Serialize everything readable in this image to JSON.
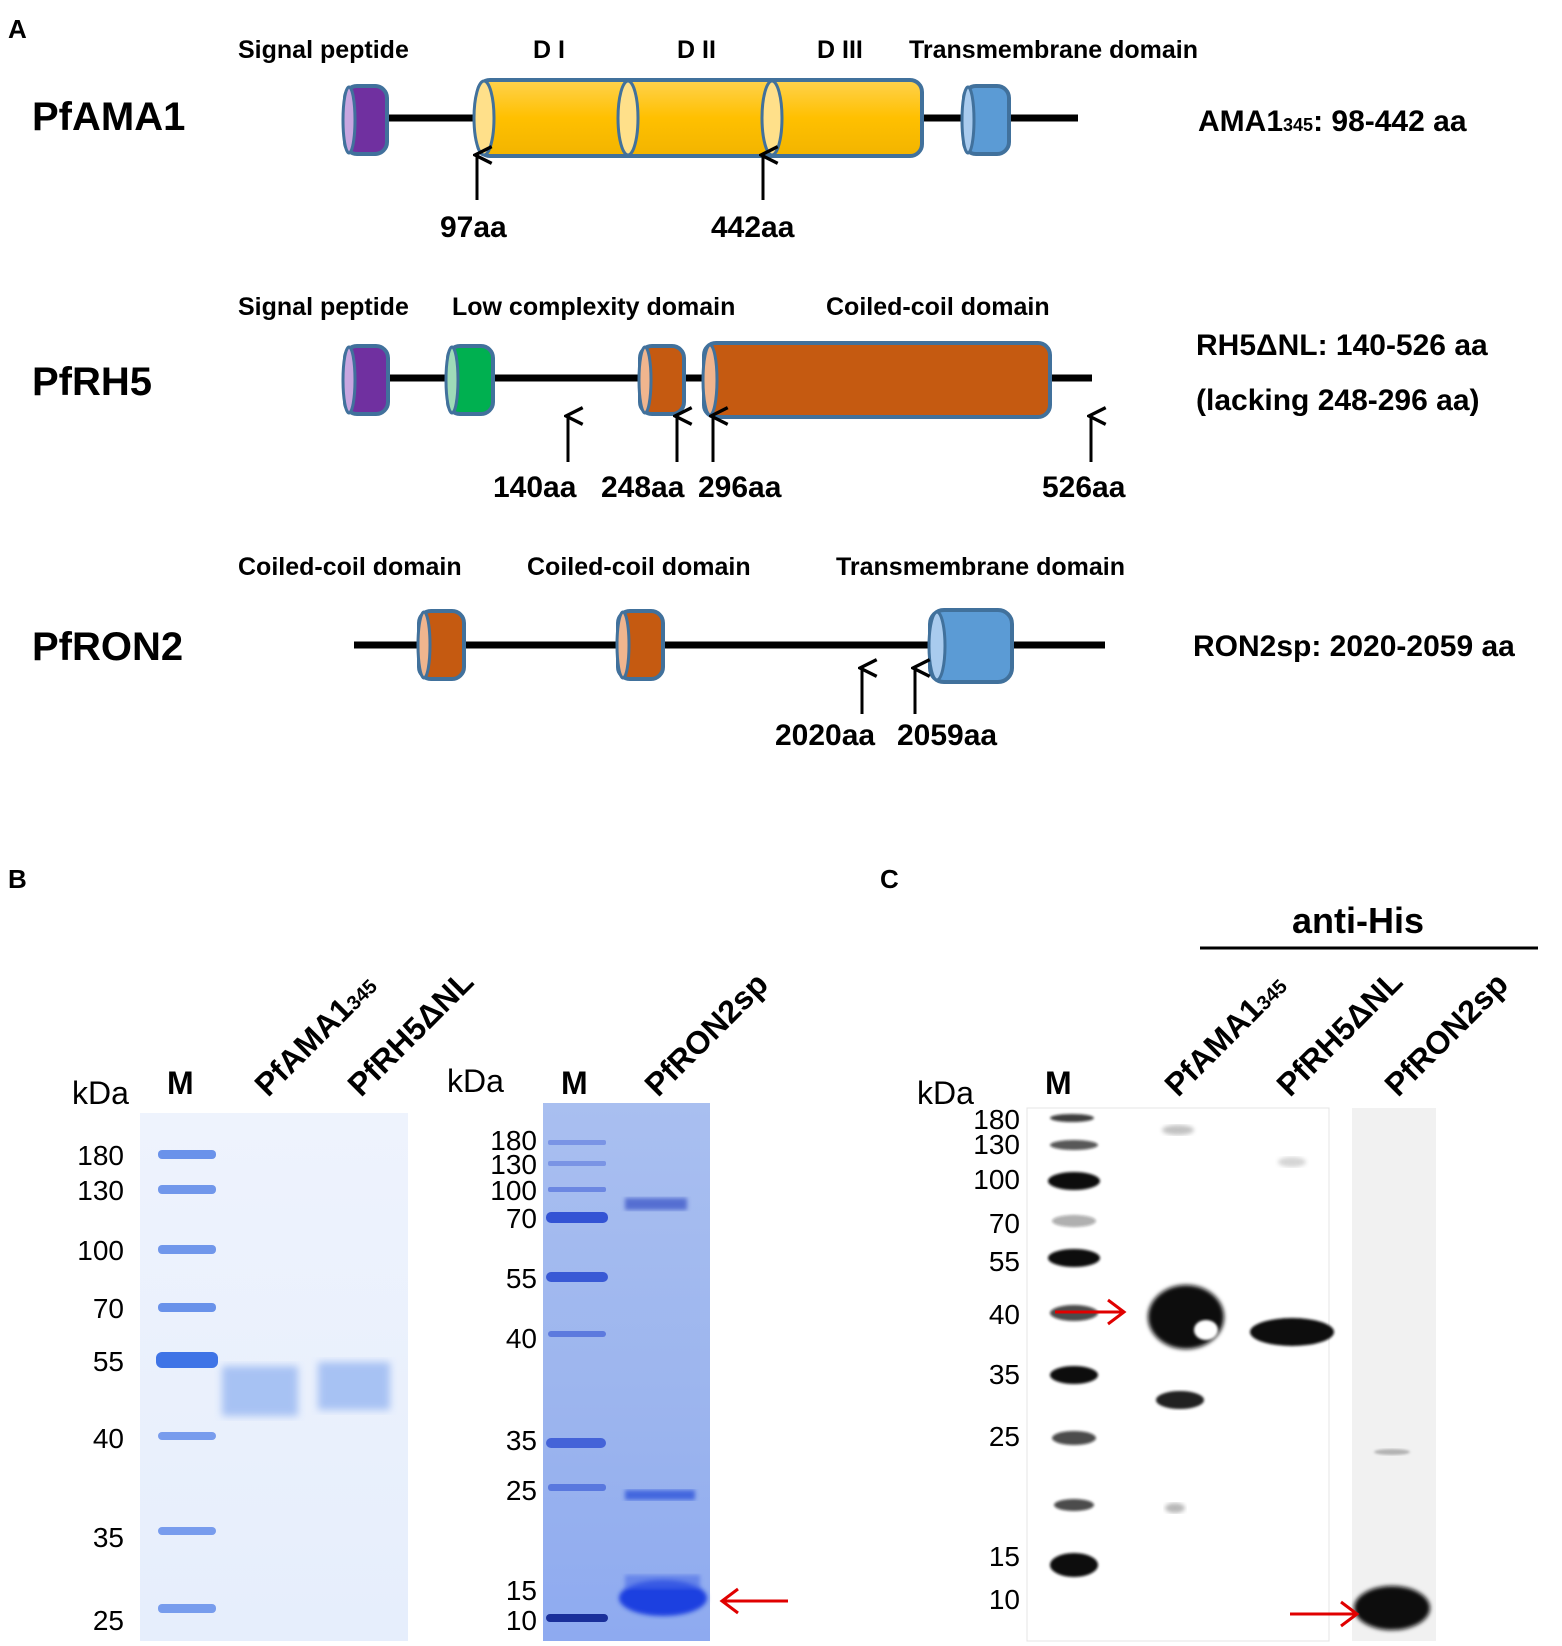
{
  "panels": {
    "a": {
      "label": "A",
      "ama1": {
        "name": "PfAMA1",
        "headers": [
          "Signal peptide",
          "D I",
          "D II",
          "D III",
          "Transmembrane domain"
        ],
        "positions": [
          "97aa",
          "442aa"
        ],
        "construct": {
          "main": "AMA1",
          "sub": "345",
          "rest": ": 98-442 aa"
        }
      },
      "rh5": {
        "name": "PfRH5",
        "headers": [
          "Signal peptide",
          "Low complexity domain",
          "Coiled-coil domain"
        ],
        "positions": [
          "140aa",
          "248aa",
          "296aa",
          "526aa"
        ],
        "construct": [
          "RH5ΔNL: 140-526 aa",
          "(lacking 248-296 aa)"
        ]
      },
      "ron2": {
        "name": "PfRON2",
        "headers": [
          "Coiled-coil domain",
          "Coiled-coil domain",
          "Transmembrane domain"
        ],
        "positions": [
          "2020aa",
          "2059aa"
        ],
        "construct": "RON2sp: 2020-2059 aa"
      }
    },
    "b": {
      "label": "B",
      "gel1": {
        "unit": "kDa",
        "marker": "M",
        "lanes": [
          {
            "main": "PfAMA1",
            "sub": "345"
          },
          {
            "main": "PfRH5ΔNL",
            "sub": ""
          }
        ],
        "ladder": [
          "180",
          "130",
          "100",
          "70",
          "55",
          "40",
          "35",
          "25"
        ]
      },
      "gel2": {
        "unit": "kDa",
        "marker": "M",
        "lanes": [
          "PfRON2sp"
        ],
        "ladder": [
          "180",
          "130",
          "100",
          "70",
          "55",
          "40",
          "35",
          "25",
          "15",
          "10"
        ]
      }
    },
    "c": {
      "label": "C",
      "antibody": "anti-His",
      "unit": "kDa",
      "marker": "M",
      "lanes": [
        {
          "main": "PfAMA1",
          "sub": "345"
        },
        {
          "main": "PfRH5ΔNL",
          "sub": ""
        },
        {
          "main": "PfRON2sp",
          "sub": ""
        }
      ],
      "ladder": [
        "180",
        "130",
        "100",
        "70",
        "55",
        "40",
        "35",
        "25",
        "15",
        "10"
      ]
    }
  },
  "colors": {
    "purple": "#7030a0",
    "yellow": "#ffc000",
    "green": "#00b050",
    "orange": "#c55a11",
    "blue": "#5b9bd5",
    "outline": "#41719c",
    "gel_blue": "#2a55d8",
    "arrow_red": "#e00000"
  }
}
